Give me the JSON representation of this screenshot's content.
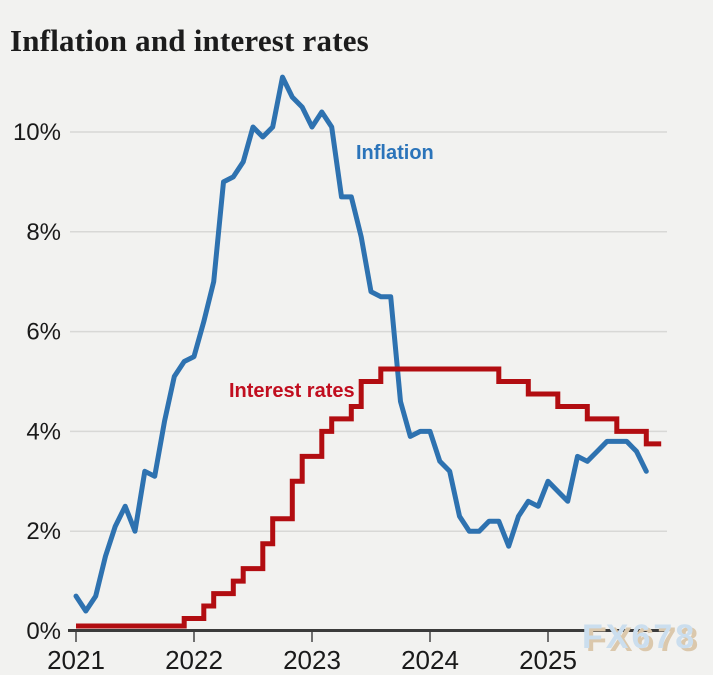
{
  "page": {
    "title": "Inflation and interest rates",
    "watermark": "FX678"
  },
  "chart_data": {
    "type": "line",
    "title": "Inflation and interest rates",
    "grid": "horizontal",
    "legend_position": "inline-annotations",
    "x_axis": {
      "unit": "month",
      "start": "2021-01",
      "tick_labels": [
        "2021",
        "2022",
        "2023",
        "2024",
        "2025"
      ],
      "ticks_at_month_index": [
        0,
        12,
        24,
        36,
        48
      ]
    },
    "y_axis": {
      "tick_labels": [
        "0%",
        "2%",
        "4%",
        "6%",
        "8%",
        "10%"
      ],
      "tick_values": [
        0,
        2,
        4,
        6,
        8,
        10
      ],
      "ylim": [
        0,
        11.5
      ]
    },
    "series": [
      {
        "name": "Inflation",
        "color": "#2e72b0",
        "label_color": "#2b74ba",
        "line_style": "linear",
        "start": "2021-01",
        "values": [
          0.7,
          0.4,
          0.7,
          1.5,
          2.1,
          2.5,
          2.0,
          3.2,
          3.1,
          4.2,
          5.1,
          5.4,
          5.5,
          6.2,
          7.0,
          9.0,
          9.1,
          9.4,
          10.1,
          9.9,
          10.1,
          11.1,
          10.7,
          10.5,
          10.1,
          10.4,
          10.1,
          8.7,
          8.7,
          7.9,
          6.8,
          6.7,
          6.7,
          4.6,
          3.9,
          4.0,
          4.0,
          3.4,
          3.2,
          2.3,
          2.0,
          2.0,
          2.2,
          2.2,
          1.7,
          2.3,
          2.6,
          2.5,
          3.0,
          2.8,
          2.6,
          3.5,
          3.4,
          3.6,
          3.8,
          3.8,
          3.8,
          3.6,
          3.2
        ]
      },
      {
        "name": "Interest rates",
        "color": "#b20d11",
        "label_color": "#c10e1f",
        "line_style": "step-after",
        "start": "2021-01",
        "values": [
          0.1,
          0.1,
          0.1,
          0.1,
          0.1,
          0.1,
          0.1,
          0.1,
          0.1,
          0.1,
          0.1,
          0.25,
          0.25,
          0.5,
          0.75,
          0.75,
          1.0,
          1.25,
          1.25,
          1.75,
          2.25,
          2.25,
          3.0,
          3.5,
          3.5,
          4.0,
          4.25,
          4.25,
          4.5,
          5.0,
          5.0,
          5.25,
          5.25,
          5.25,
          5.25,
          5.25,
          5.25,
          5.25,
          5.25,
          5.25,
          5.25,
          5.25,
          5.25,
          5.0,
          5.0,
          5.0,
          4.75,
          4.75,
          4.75,
          4.5,
          4.5,
          4.5,
          4.25,
          4.25,
          4.25,
          4.0,
          4.0,
          4.0,
          3.75,
          3.75
        ]
      }
    ]
  }
}
